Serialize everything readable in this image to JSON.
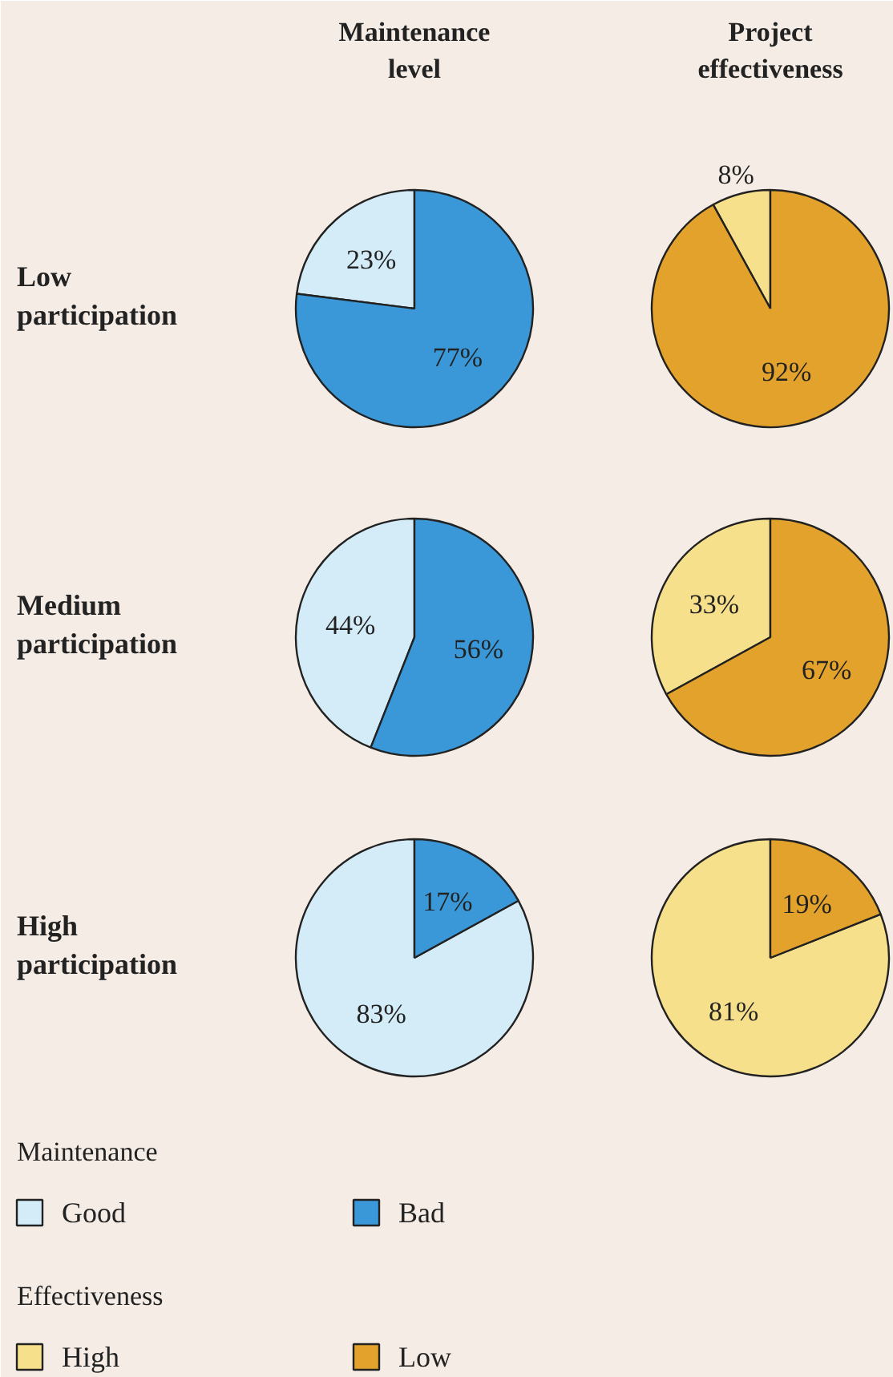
{
  "chart_data": [
    {
      "type": "pie",
      "title": "Maintenance\nlevel",
      "ylabel": "Low\nparticipation",
      "categories": [
        "Good",
        "Bad"
      ],
      "values": [
        23,
        77
      ],
      "value_labels": [
        "23%",
        "77%"
      ],
      "colors": [
        "#d3ecf8",
        "#3a98d8"
      ],
      "legend": "bottom",
      "legend_title": "Maintenance"
    },
    {
      "type": "pie",
      "title": "Project\neffectiveness",
      "categories": [
        "High",
        "Low"
      ],
      "values": [
        8,
        92
      ],
      "value_labels": [
        "8%",
        "92%"
      ],
      "colors": [
        "#f7e08c",
        "#e2a22c"
      ],
      "legend": "bottom",
      "legend_title": "Effectiveness"
    },
    {
      "type": "pie",
      "ylabel": "Medium\nparticipation",
      "categories": [
        null,
        null
      ],
      "values": [
        44,
        56
      ],
      "value_labels": [
        "44%",
        "56%"
      ],
      "colors": [
        "#d3ecf8",
        "#3a98d8"
      ]
    },
    {
      "type": "pie",
      "categories": [
        null,
        null
      ],
      "values": [
        33,
        67
      ],
      "value_labels": [
        "33%",
        "67%"
      ],
      "colors": [
        "#f7e08c",
        "#e2a22c"
      ]
    },
    {
      "type": "pie",
      "ylabel": "High\nparticipation",
      "categories": [
        null,
        null
      ],
      "values": [
        83,
        17
      ],
      "value_labels": [
        "83%",
        "17%"
      ],
      "colors": [
        "#d3ecf8",
        "#3a98d8"
      ]
    },
    {
      "type": "pie",
      "categories": [
        null,
        null
      ],
      "values": [
        81,
        19
      ],
      "value_labels": [
        "81%",
        "19%"
      ],
      "colors": [
        "#f7e08c",
        "#e2a22c"
      ]
    }
  ]
}
